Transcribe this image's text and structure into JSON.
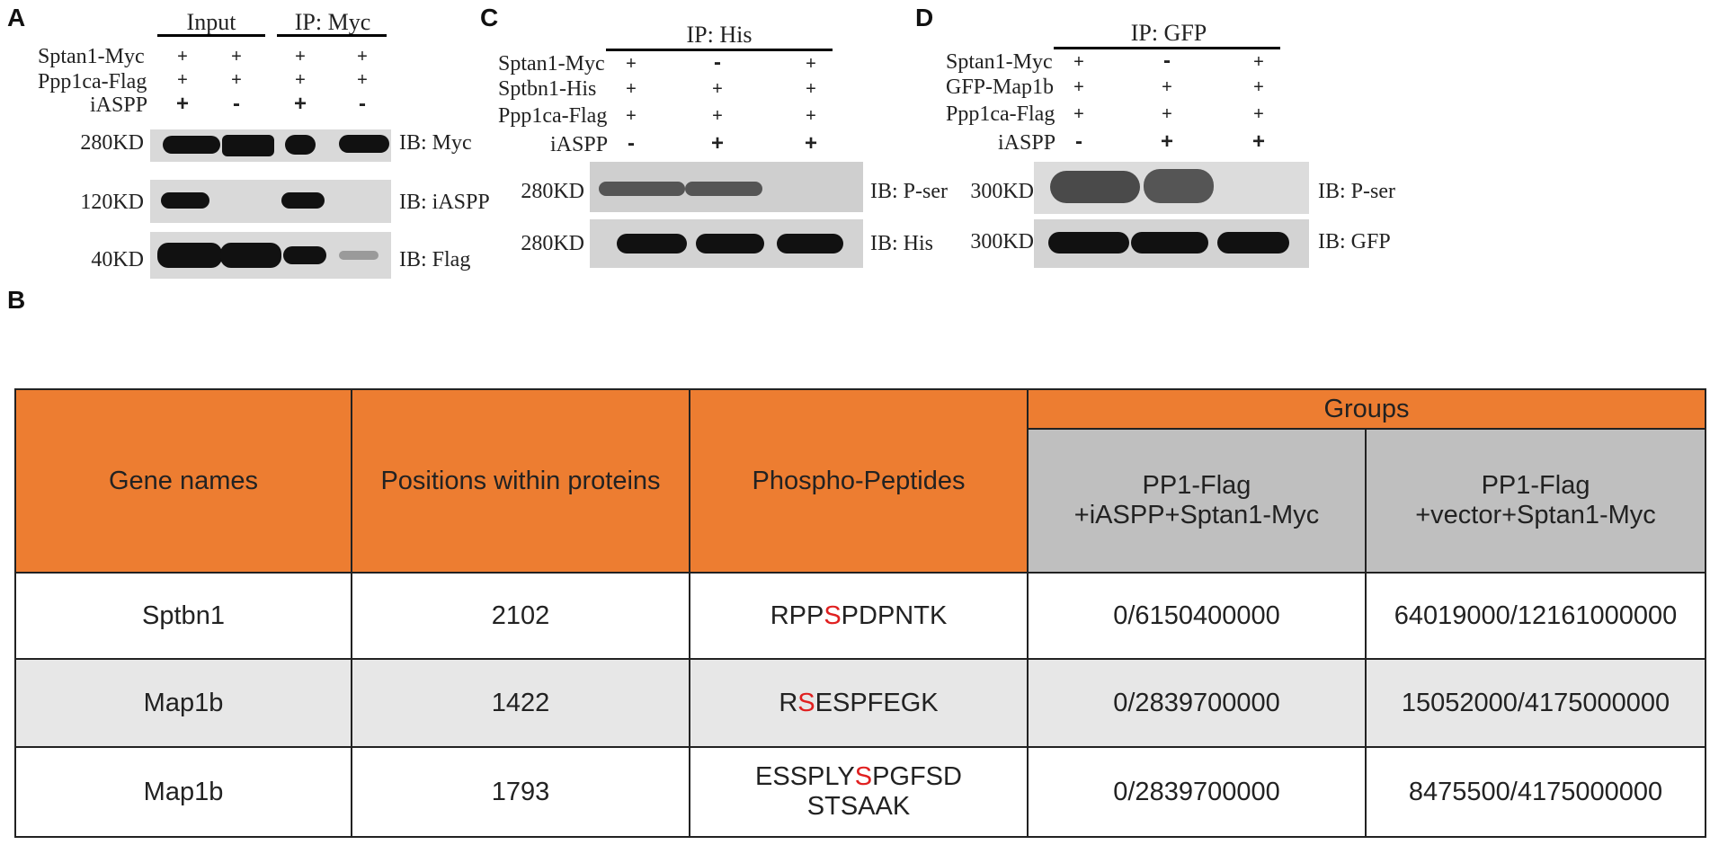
{
  "panels": {
    "A": {
      "letter": "A",
      "headers": [
        "Input",
        "IP: Myc"
      ],
      "rows": [
        {
          "label": "Sptan1-Myc",
          "values": [
            "+",
            "+",
            "+",
            "+"
          ]
        },
        {
          "label": "Ppp1ca-Flag",
          "values": [
            "+",
            "+",
            "+",
            "+"
          ]
        },
        {
          "label": "iASPP",
          "values": [
            "+",
            "-",
            "+",
            "-"
          ]
        }
      ],
      "blots": [
        {
          "size": "280KD",
          "ib": "IB: Myc"
        },
        {
          "size": "120KD",
          "ib": "IB: iASPP"
        },
        {
          "size": "40KD",
          "ib": "IB: Flag"
        }
      ]
    },
    "B": {
      "letter": "B"
    },
    "C": {
      "letter": "C",
      "header": "IP: His",
      "rows": [
        {
          "label": "Sptan1-Myc",
          "values": [
            "+",
            "-",
            "+"
          ]
        },
        {
          "label": "Sptbn1-His",
          "values": [
            "+",
            "+",
            "+"
          ]
        },
        {
          "label": "Ppp1ca-Flag",
          "values": [
            "+",
            "+",
            "+"
          ]
        },
        {
          "label": "iASPP",
          "values": [
            "-",
            "+",
            "+"
          ]
        }
      ],
      "blots": [
        {
          "size": "280KD",
          "ib": "IB: P-ser"
        },
        {
          "size": "280KD",
          "ib": "IB: His"
        }
      ]
    },
    "D": {
      "letter": "D",
      "header": "IP: GFP",
      "rows": [
        {
          "label": "Sptan1-Myc",
          "values": [
            "+",
            "-",
            "+"
          ]
        },
        {
          "label": "GFP-Map1b",
          "values": [
            "+",
            "+",
            "+"
          ]
        },
        {
          "label": "Ppp1ca-Flag",
          "values": [
            "+",
            "+",
            "+"
          ]
        },
        {
          "label": "iASPP",
          "values": [
            "-",
            "+",
            "+"
          ]
        }
      ],
      "blots": [
        {
          "size": "300KD",
          "ib": "IB: P-ser"
        },
        {
          "size": "300KD",
          "ib": "IB: GFP"
        }
      ]
    }
  },
  "table": {
    "headers": {
      "gene": "Gene names",
      "position": "Positions within proteins",
      "peptide": "Phospho-Peptides",
      "groups": "Groups",
      "group1_line1": "PP1-Flag",
      "group1_line2": "+iASPP+Sptan1-Myc",
      "group2_line1": "PP1-Flag",
      "group2_line2": "+vector+Sptan1-Myc"
    },
    "rows": [
      {
        "gene": "Sptbn1",
        "position": "2102",
        "pep_pre": "RPP",
        "pep_site": "S",
        "pep_post": "PDPNTK",
        "pep_line2": "",
        "g1": "0/6150400000",
        "g2": "64019000/12161000000"
      },
      {
        "gene": "Map1b",
        "position": "1422",
        "pep_pre": "R",
        "pep_site": "S",
        "pep_post": "ESPFEGK",
        "pep_line2": "",
        "g1": "0/2839700000",
        "g2": "15052000/4175000000"
      },
      {
        "gene": "Map1b",
        "position": "1793",
        "pep_pre": "ESSPLY",
        "pep_site": "S",
        "pep_post": "PGFSD",
        "pep_line2": "STSAAK",
        "g1": "0/2839700000",
        "g2": "8475500/4175000000"
      }
    ],
    "accent_colors": {
      "header_orange": "#ed7d31",
      "header_grey": "#bfbfbf",
      "site_red": "#e02020"
    }
  }
}
